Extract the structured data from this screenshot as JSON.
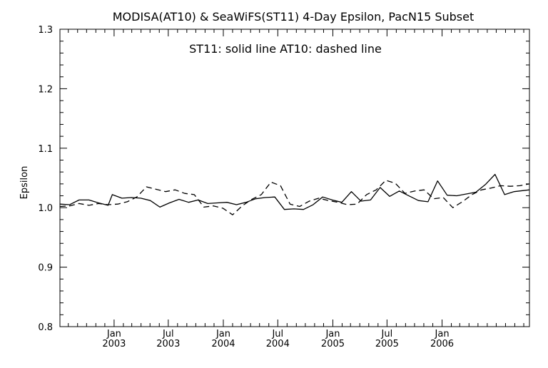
{
  "chart_data": {
    "type": "line",
    "title": "MODISA(AT10) & SeaWiFS(ST11) 4-Day Epsilon, PacN15 Subset",
    "annotation": "ST11: solid line   AT10: dashed line",
    "xlabel": "",
    "ylabel": "Epsilon",
    "ylim": [
      0.8,
      1.3
    ],
    "y_ticks": [
      "0.8",
      "0.9",
      "1.0",
      "1.1",
      "1.2",
      "1.3"
    ],
    "y_tick_values": [
      0.8,
      0.9,
      1.0,
      1.1,
      1.2,
      1.3
    ],
    "x_ticks": [
      {
        "label": "Jan",
        "label2": "2003",
        "date": "2003-01-01"
      },
      {
        "label": "Jul",
        "label2": "2003",
        "date": "2003-07-01"
      },
      {
        "label": "Jan",
        "label2": "2004",
        "date": "2004-01-01"
      },
      {
        "label": "Jul",
        "label2": "2004",
        "date": "2004-07-01"
      },
      {
        "label": "Jan",
        "label2": "2005",
        "date": "2005-01-01"
      },
      {
        "label": "Jul",
        "label2": "2005",
        "date": "2005-07-01"
      },
      {
        "label": "Jan",
        "label2": "2006",
        "date": "2006-01-01"
      }
    ],
    "xlim": [
      "2002-07-04",
      "2006-10-20"
    ],
    "grid": false,
    "series": [
      {
        "name": "ST11",
        "style": "solid",
        "color": "#000000",
        "points": [
          [
            "2002-07-04",
            1.006
          ],
          [
            "2002-08-05",
            1.005
          ],
          [
            "2002-09-06",
            1.013
          ],
          [
            "2002-10-09",
            1.013
          ],
          [
            "2002-11-10",
            1.008
          ],
          [
            "2002-12-12",
            1.004
          ],
          [
            "2002-12-26",
            1.022
          ],
          [
            "2003-01-27",
            1.016
          ],
          [
            "2003-02-28",
            1.017
          ],
          [
            "2003-03-31",
            1.016
          ],
          [
            "2003-05-02",
            1.012
          ],
          [
            "2003-06-03",
            1.001
          ],
          [
            "2003-07-05",
            1.008
          ],
          [
            "2003-08-06",
            1.014
          ],
          [
            "2003-09-07",
            1.009
          ],
          [
            "2003-10-09",
            1.013
          ],
          [
            "2003-11-10",
            1.007
          ],
          [
            "2003-12-12",
            1.008
          ],
          [
            "2004-01-13",
            1.009
          ],
          [
            "2004-02-14",
            1.005
          ],
          [
            "2004-03-17",
            1.009
          ],
          [
            "2004-04-18",
            1.015
          ],
          [
            "2004-05-20",
            1.017
          ],
          [
            "2004-06-21",
            1.018
          ],
          [
            "2004-07-23",
            0.997
          ],
          [
            "2004-08-24",
            0.998
          ],
          [
            "2004-09-25",
            0.997
          ],
          [
            "2004-10-27",
            1.005
          ],
          [
            "2004-11-28",
            1.018
          ],
          [
            "2004-12-30",
            1.013
          ],
          [
            "2005-01-31",
            1.009
          ],
          [
            "2005-03-04",
            1.027
          ],
          [
            "2005-04-05",
            1.011
          ],
          [
            "2005-05-07",
            1.013
          ],
          [
            "2005-06-08",
            1.034
          ],
          [
            "2005-07-10",
            1.019
          ],
          [
            "2005-08-11",
            1.028
          ],
          [
            "2005-09-12",
            1.02
          ],
          [
            "2005-10-14",
            1.012
          ],
          [
            "2005-11-15",
            1.01
          ],
          [
            "2005-12-17",
            1.045
          ],
          [
            "2006-01-18",
            1.021
          ],
          [
            "2006-02-19",
            1.02
          ],
          [
            "2006-03-23",
            1.023
          ],
          [
            "2006-04-24",
            1.026
          ],
          [
            "2006-05-26",
            1.039
          ],
          [
            "2006-06-27",
            1.056
          ],
          [
            "2006-07-29",
            1.022
          ],
          [
            "2006-08-30",
            1.027
          ],
          [
            "2006-10-20",
            1.03
          ]
        ]
      },
      {
        "name": "AT10",
        "style": "dashed",
        "color": "#000000",
        "points": [
          [
            "2002-07-04",
            1.002
          ],
          [
            "2002-08-05",
            1.003
          ],
          [
            "2002-09-06",
            1.007
          ],
          [
            "2002-10-09",
            1.004
          ],
          [
            "2002-11-10",
            1.007
          ],
          [
            "2002-12-12",
            1.005
          ],
          [
            "2003-01-13",
            1.006
          ],
          [
            "2003-02-14",
            1.01
          ],
          [
            "2003-03-18",
            1.018
          ],
          [
            "2003-04-19",
            1.035
          ],
          [
            "2003-05-21",
            1.031
          ],
          [
            "2003-06-22",
            1.027
          ],
          [
            "2003-07-24",
            1.03
          ],
          [
            "2003-08-25",
            1.024
          ],
          [
            "2003-09-26",
            1.022
          ],
          [
            "2003-10-28",
            1.001
          ],
          [
            "2003-11-29",
            1.003
          ],
          [
            "2003-12-31",
            0.999
          ],
          [
            "2004-02-01",
            0.988
          ],
          [
            "2004-03-04",
            1.003
          ],
          [
            "2004-04-05",
            1.014
          ],
          [
            "2004-05-07",
            1.022
          ],
          [
            "2004-06-08",
            1.043
          ],
          [
            "2004-07-10",
            1.037
          ],
          [
            "2004-08-11",
            1.006
          ],
          [
            "2004-09-12",
            1.002
          ],
          [
            "2004-10-14",
            1.011
          ],
          [
            "2004-11-15",
            1.016
          ],
          [
            "2004-12-17",
            1.012
          ],
          [
            "2005-01-18",
            1.009
          ],
          [
            "2005-02-19",
            1.005
          ],
          [
            "2005-03-23",
            1.006
          ],
          [
            "2005-04-24",
            1.022
          ],
          [
            "2005-05-26",
            1.03
          ],
          [
            "2005-06-27",
            1.046
          ],
          [
            "2005-07-29",
            1.041
          ],
          [
            "2005-08-30",
            1.024
          ],
          [
            "2005-10-01",
            1.028
          ],
          [
            "2005-11-02",
            1.03
          ],
          [
            "2005-12-04",
            1.015
          ],
          [
            "2006-01-05",
            1.017
          ],
          [
            "2006-02-06",
            1.0
          ],
          [
            "2006-03-10",
            1.01
          ],
          [
            "2006-04-11",
            1.022
          ],
          [
            "2006-05-13",
            1.03
          ],
          [
            "2006-06-14",
            1.033
          ],
          [
            "2006-07-16",
            1.037
          ],
          [
            "2006-08-17",
            1.036
          ],
          [
            "2006-09-18",
            1.037
          ],
          [
            "2006-10-20",
            1.04
          ]
        ]
      }
    ]
  }
}
